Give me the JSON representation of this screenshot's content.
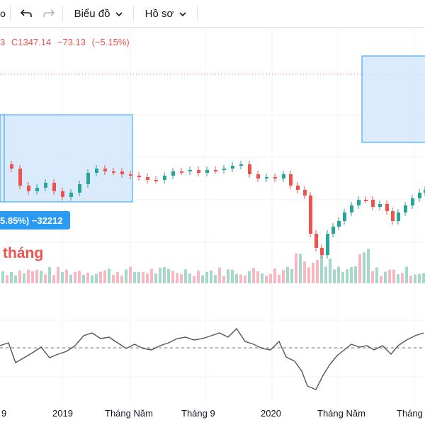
{
  "toolbar": {
    "redo_label": "",
    "chart_menu": "Biểu đồ",
    "profile_menu": "Hồ sơ",
    "partial_leading": "o"
  },
  "legend": {
    "prefix": "3",
    "close_label": "C1347.14",
    "change": "−73.13",
    "change_pct": "(−5.15%)"
  },
  "measure": {
    "tooltip": "5.85%) −32212",
    "period": "tháng"
  },
  "xaxis": {
    "labels": [
      "9",
      "2019",
      "Tháng Năm",
      "Tháng 9",
      "2020",
      "Tháng Năm",
      "Tháng"
    ]
  },
  "colors": {
    "up": "#26a69a",
    "down": "#ef5350",
    "vol_up": "#a5d8c8",
    "vol_down": "#f7b9c1",
    "selection_fill": "#d0e6fb",
    "selection_stroke": "#2a9af2",
    "oscillator": "#555555"
  },
  "icons": [
    "undo-icon",
    "redo-icon",
    "chevron-down-icon"
  ]
}
